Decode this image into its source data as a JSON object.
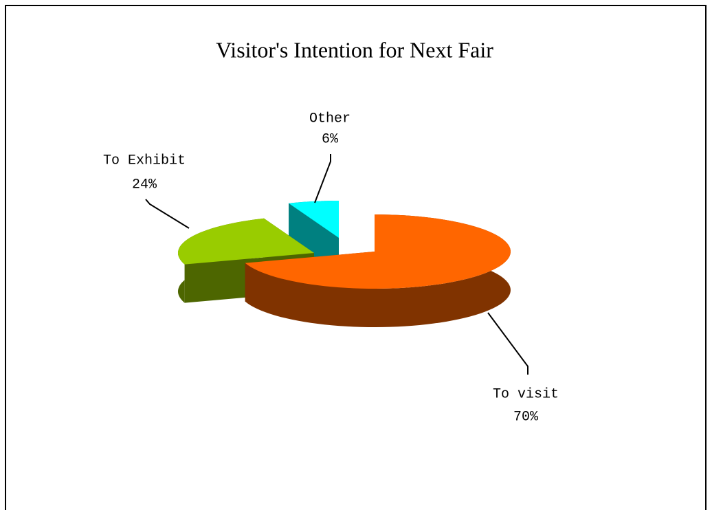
{
  "chart_data": {
    "type": "pie",
    "title": "Visitor's Intention for Next Fair",
    "categories": [
      "To visit",
      "To Exhibit",
      "Other"
    ],
    "values": [
      70,
      24,
      6
    ],
    "value_labels": [
      "70%",
      "24%",
      "6%"
    ],
    "colors": [
      "#ff6600",
      "#99cc00",
      "#00ffff"
    ]
  }
}
